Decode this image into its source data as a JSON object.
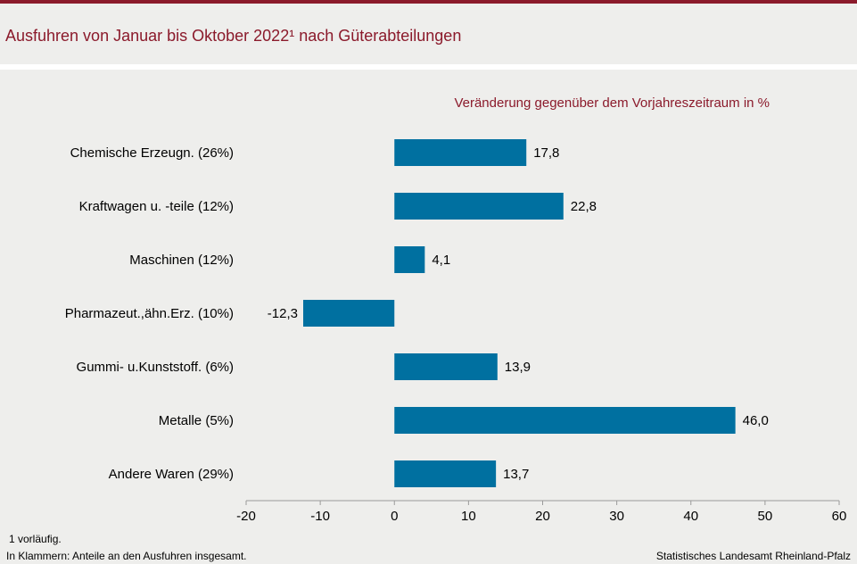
{
  "header": {
    "title": "Ausfuhren von Januar bis Oktober 2022¹ nach Güterabteilungen"
  },
  "colors": {
    "accent": "#8b1a2b",
    "bar": "#0070a0",
    "background": "#eeeeec",
    "axis": "#9a9a9a"
  },
  "chart_data": {
    "type": "bar",
    "orientation": "horizontal",
    "subtitle": "Veränderung  gegenüber  dem  Vorjahreszeitraum  in %",
    "categories": [
      "Chemische Erzeugn. (26%)",
      "Kraftwagen u. -teile (12%)",
      "Maschinen (12%)",
      "Pharmazeut.,ähn.Erz. (10%)",
      "Gummi- u.Kunststoff. (6%)",
      "Metalle (5%)",
      "Andere Waren (29%)"
    ],
    "values": [
      17.8,
      22.8,
      4.1,
      -12.3,
      13.9,
      46.0,
      13.7
    ],
    "value_labels": [
      "17,8",
      "22,8",
      "4,1",
      "-12,3",
      "13,9",
      "46,0",
      "13,7"
    ],
    "xlim": [
      -20,
      60
    ],
    "xticks": [
      -20,
      -10,
      0,
      10,
      20,
      30,
      40,
      50,
      60
    ],
    "xtick_labels": [
      "-20",
      "-10",
      "0",
      "10",
      "20",
      "30",
      "40",
      "50",
      "60"
    ],
    "grid": false,
    "legend": "none"
  },
  "footnotes": {
    "note1": "1 vorläufig.",
    "note2": "In Klammern:  Anteile an den Ausfuhren  insgesamt.",
    "source": "Statistisches Landesamt  Rheinland-Pfalz"
  }
}
